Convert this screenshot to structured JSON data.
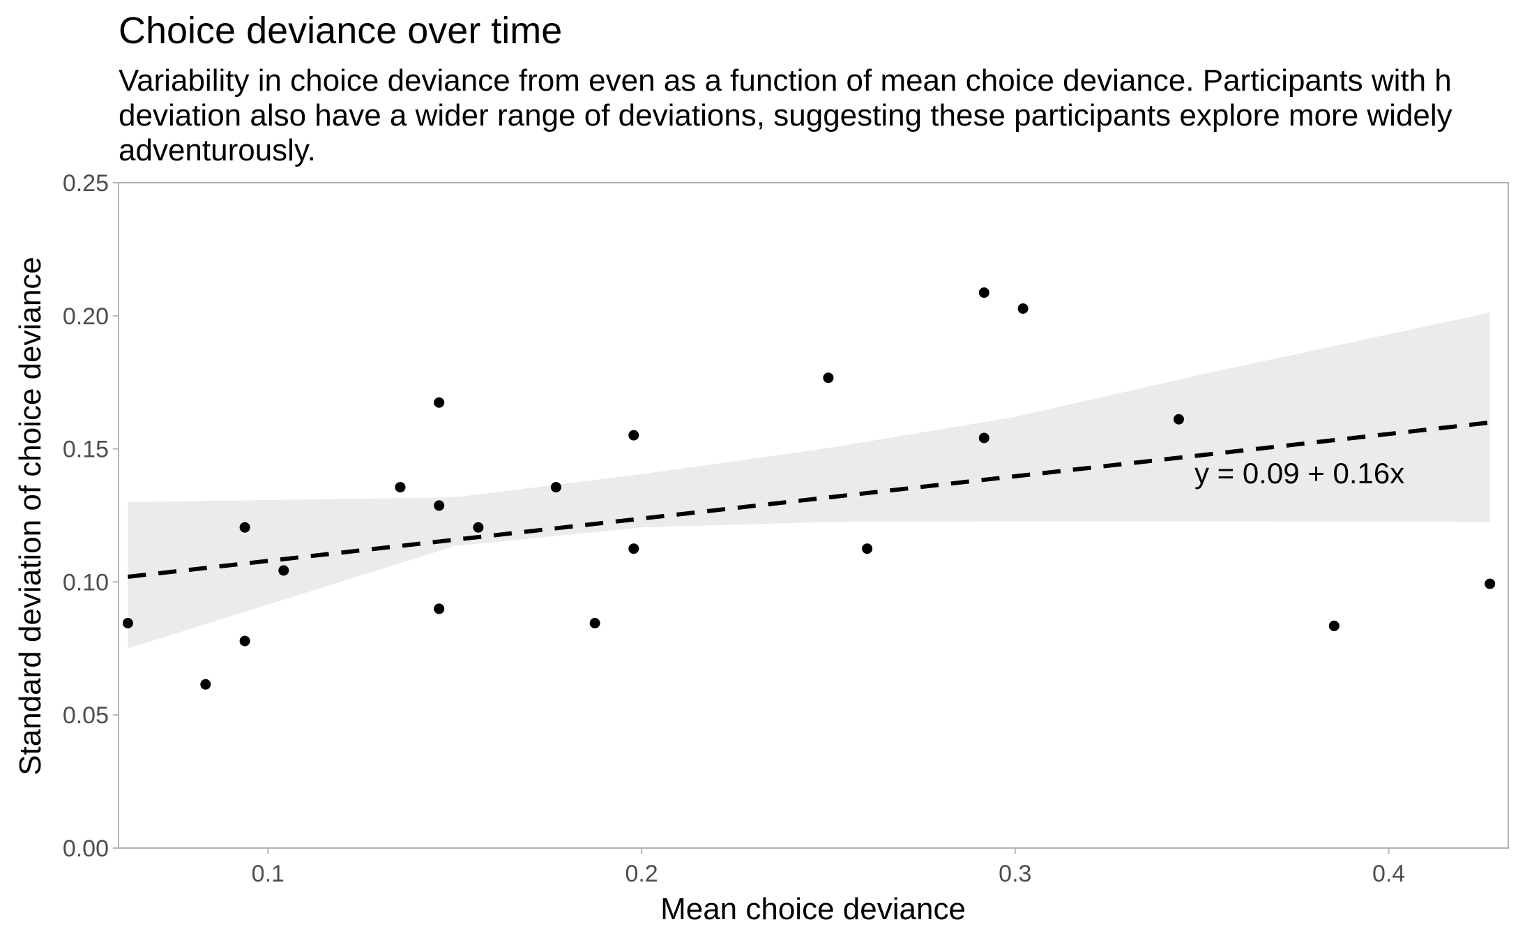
{
  "chart_data": {
    "type": "scatter",
    "title": "Choice deviance over time",
    "subtitle_lines": [
      "Variability in choice deviance from even as a function of mean choice deviance. Participants with h",
      "deviation also have a wider range of deviations, suggesting these participants explore more widely",
      "adventurously."
    ],
    "xlabel": "Mean choice deviance",
    "ylabel": "Standard deviation of choice deviance",
    "xlim": [
      0.06,
      0.432
    ],
    "ylim": [
      0,
      0.25
    ],
    "x_ticks": [
      0.1,
      0.2,
      0.3,
      0.4
    ],
    "x_tick_labels": [
      "0.1",
      "0.2",
      "0.3",
      "0.4"
    ],
    "y_ticks": [
      0,
      0.05,
      0.1,
      0.15,
      0.2,
      0.25
    ],
    "y_tick_labels": [
      "0.00",
      "0.05",
      "0.10",
      "0.15",
      "0.20",
      "0.25"
    ],
    "grid": false,
    "points": [
      {
        "x": 0.0625,
        "y": 0.0845
      },
      {
        "x": 0.0833,
        "y": 0.0615
      },
      {
        "x": 0.0938,
        "y": 0.1205
      },
      {
        "x": 0.0938,
        "y": 0.0778
      },
      {
        "x": 0.1042,
        "y": 0.1043
      },
      {
        "x": 0.1354,
        "y": 0.1356
      },
      {
        "x": 0.1458,
        "y": 0.1674
      },
      {
        "x": 0.1458,
        "y": 0.1287
      },
      {
        "x": 0.1458,
        "y": 0.0899
      },
      {
        "x": 0.1563,
        "y": 0.1205
      },
      {
        "x": 0.1771,
        "y": 0.1356
      },
      {
        "x": 0.1875,
        "y": 0.0845
      },
      {
        "x": 0.1979,
        "y": 0.1551
      },
      {
        "x": 0.1979,
        "y": 0.1125
      },
      {
        "x": 0.25,
        "y": 0.1767
      },
      {
        "x": 0.2604,
        "y": 0.1125
      },
      {
        "x": 0.2917,
        "y": 0.2087
      },
      {
        "x": 0.2917,
        "y": 0.1541
      },
      {
        "x": 0.3021,
        "y": 0.2027
      },
      {
        "x": 0.3438,
        "y": 0.1611
      },
      {
        "x": 0.3854,
        "y": 0.0835
      },
      {
        "x": 0.4271,
        "y": 0.0993
      }
    ],
    "fit_line": {
      "intercept": 0.092,
      "slope": 0.159,
      "x_range": [
        0.0625,
        0.4271
      ]
    },
    "confidence_band": {
      "x": [
        0.0625,
        0.15,
        0.2,
        0.25,
        0.3,
        0.35,
        0.4271
      ],
      "lower": [
        0.075,
        0.1135,
        0.1205,
        0.1225,
        0.1228,
        0.1228,
        0.1225
      ],
      "upper": [
        0.13,
        0.1318,
        0.1405,
        0.1503,
        0.162,
        0.178,
        0.2012
      ]
    },
    "annotation": {
      "text": "y = 0.09 + 0.16x",
      "x": 0.348,
      "y": 0.137
    }
  },
  "colors": {
    "points": "#000000",
    "band": "#ebebeb",
    "fit_line": "#000000",
    "panel_border": "#b3b3b3",
    "tick_labels": "#4d4d4d"
  }
}
